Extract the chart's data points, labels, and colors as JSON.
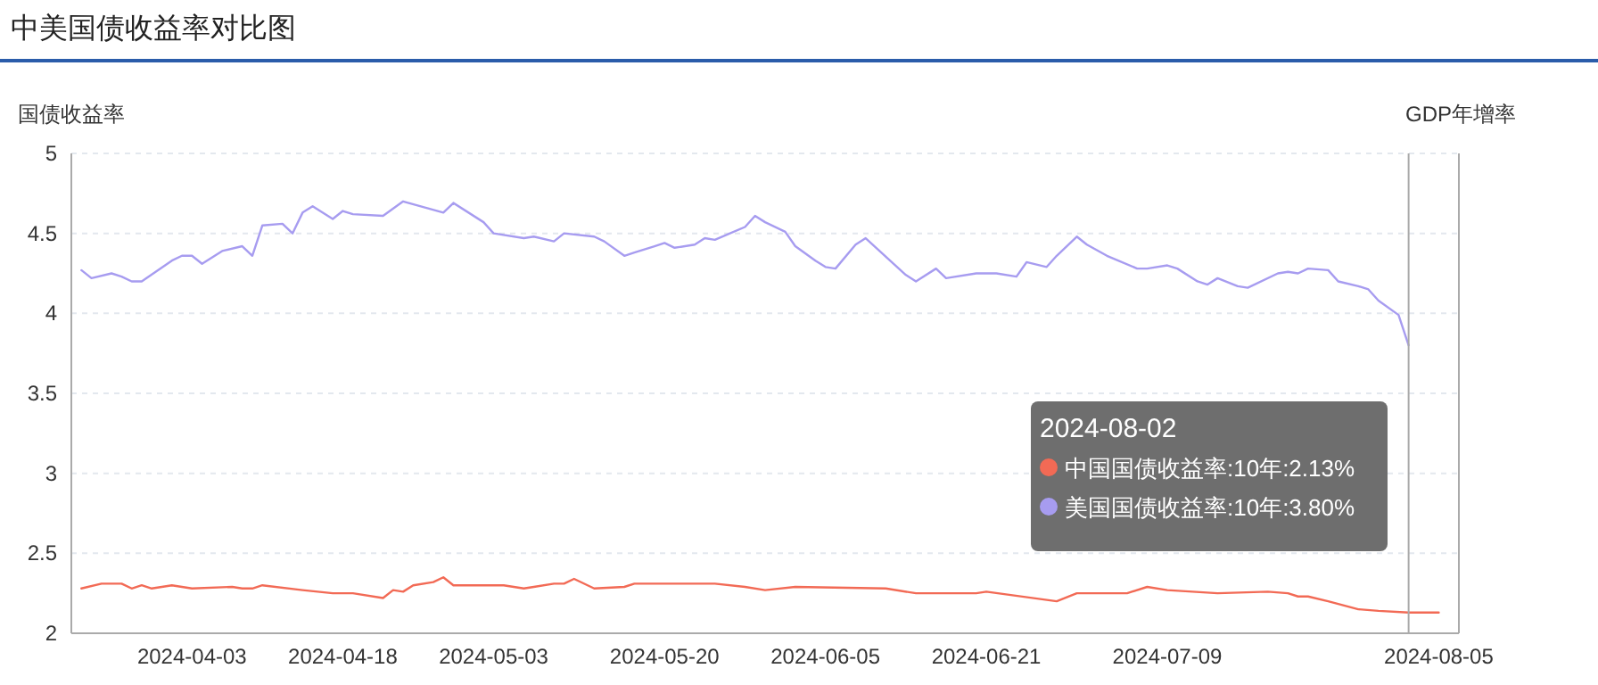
{
  "chart_data": {
    "type": "line",
    "title": "中美国债收益率对比图",
    "ylabel": "国债收益率",
    "y2label": "GDP年增率",
    "xlim": [
      "2024-03-22",
      "2024-08-07"
    ],
    "xticks": [
      "2024-04-03",
      "2024-04-18",
      "2024-05-03",
      "2024-05-20",
      "2024-06-05",
      "2024-06-21",
      "2024-07-09",
      "2024-08-05"
    ],
    "ylim": [
      2,
      5
    ],
    "yticks": [
      2,
      2.5,
      3,
      3.5,
      4,
      4.5,
      5
    ],
    "grid": "y",
    "marker": "none",
    "line_style": "solid",
    "ref_lines": [
      {
        "axis": "x",
        "value": "2024-08-02",
        "color": "#aaaaaa"
      }
    ],
    "annotations": [
      "2024-08-02",
      "中国国债收益率:10年:2.13%",
      "美国国债收益率:10年:3.80%"
    ],
    "series": [
      {
        "color": "#f26a55",
        "x": [
          "2024-03-23",
          "2024-03-25",
          "2024-03-27",
          "2024-03-28",
          "2024-03-29",
          "2024-03-30",
          "2024-04-01",
          "2024-04-03",
          "2024-04-07",
          "2024-04-08",
          "2024-04-09",
          "2024-04-10",
          "2024-04-14",
          "2024-04-17",
          "2024-04-19",
          "2024-04-22",
          "2024-04-23",
          "2024-04-24",
          "2024-04-25",
          "2024-04-27",
          "2024-04-28",
          "2024-04-29",
          "2024-05-04",
          "2024-05-06",
          "2024-05-07",
          "2024-05-09",
          "2024-05-10",
          "2024-05-11",
          "2024-05-13",
          "2024-05-16",
          "2024-05-17",
          "2024-05-25",
          "2024-05-28",
          "2024-05-30",
          "2024-06-02",
          "2024-06-11",
          "2024-06-14",
          "2024-06-20",
          "2024-06-21",
          "2024-06-28",
          "2024-06-30",
          "2024-07-05",
          "2024-07-07",
          "2024-07-09",
          "2024-07-14",
          "2024-07-19",
          "2024-07-21",
          "2024-07-22",
          "2024-07-23",
          "2024-07-25",
          "2024-07-28",
          "2024-07-30",
          "2024-08-02",
          "2024-08-05"
        ],
        "values": [
          2.28,
          2.31,
          2.31,
          2.28,
          2.3,
          2.28,
          2.3,
          2.28,
          2.29,
          2.28,
          2.28,
          2.3,
          2.27,
          2.25,
          2.25,
          2.22,
          2.27,
          2.26,
          2.3,
          2.32,
          2.35,
          2.3,
          2.3,
          2.28,
          2.29,
          2.31,
          2.31,
          2.34,
          2.28,
          2.29,
          2.31,
          2.31,
          2.29,
          2.27,
          2.29,
          2.28,
          2.25,
          2.25,
          2.26,
          2.2,
          2.25,
          2.25,
          2.29,
          2.27,
          2.25,
          2.26,
          2.25,
          2.23,
          2.23,
          2.2,
          2.15,
          2.14,
          2.13,
          2.13
        ]
      },
      {
        "color": "#a79cf0",
        "x": [
          "2024-03-23",
          "2024-03-24",
          "2024-03-26",
          "2024-03-27",
          "2024-03-28",
          "2024-03-29",
          "2024-04-01",
          "2024-04-02",
          "2024-04-03",
          "2024-04-04",
          "2024-04-06",
          "2024-04-08",
          "2024-04-09",
          "2024-04-10",
          "2024-04-12",
          "2024-04-13",
          "2024-04-14",
          "2024-04-15",
          "2024-04-17",
          "2024-04-18",
          "2024-04-19",
          "2024-04-22",
          "2024-04-24",
          "2024-04-28",
          "2024-04-29",
          "2024-05-02",
          "2024-05-03",
          "2024-05-06",
          "2024-05-07",
          "2024-05-09",
          "2024-05-10",
          "2024-05-13",
          "2024-05-14",
          "2024-05-16",
          "2024-05-17",
          "2024-05-19",
          "2024-05-20",
          "2024-05-21",
          "2024-05-23",
          "2024-05-24",
          "2024-05-25",
          "2024-05-28",
          "2024-05-29",
          "2024-05-30",
          "2024-06-01",
          "2024-06-02",
          "2024-06-04",
          "2024-06-05",
          "2024-06-06",
          "2024-06-08",
          "2024-06-09",
          "2024-06-13",
          "2024-06-14",
          "2024-06-16",
          "2024-06-17",
          "2024-06-20",
          "2024-06-22",
          "2024-06-24",
          "2024-06-25",
          "2024-06-27",
          "2024-06-28",
          "2024-06-30",
          "2024-07-01",
          "2024-07-03",
          "2024-07-06",
          "2024-07-07",
          "2024-07-09",
          "2024-07-10",
          "2024-07-12",
          "2024-07-13",
          "2024-07-14",
          "2024-07-16",
          "2024-07-17",
          "2024-07-20",
          "2024-07-21",
          "2024-07-22",
          "2024-07-23",
          "2024-07-25",
          "2024-07-26",
          "2024-07-28",
          "2024-07-29",
          "2024-07-30",
          "2024-08-01",
          "2024-08-02"
        ],
        "values": [
          4.27,
          4.22,
          4.25,
          4.23,
          4.2,
          4.2,
          4.33,
          4.36,
          4.36,
          4.31,
          4.39,
          4.42,
          4.36,
          4.55,
          4.56,
          4.5,
          4.63,
          4.67,
          4.59,
          4.64,
          4.62,
          4.61,
          4.7,
          4.63,
          4.69,
          4.57,
          4.5,
          4.47,
          4.48,
          4.45,
          4.5,
          4.48,
          4.45,
          4.36,
          4.38,
          4.42,
          4.44,
          4.41,
          4.43,
          4.47,
          4.46,
          4.54,
          4.61,
          4.57,
          4.51,
          4.42,
          4.33,
          4.29,
          4.28,
          4.43,
          4.47,
          4.24,
          4.2,
          4.28,
          4.22,
          4.25,
          4.25,
          4.23,
          4.32,
          4.29,
          4.36,
          4.48,
          4.43,
          4.36,
          4.28,
          4.28,
          4.3,
          4.28,
          4.2,
          4.18,
          4.22,
          4.17,
          4.16,
          4.25,
          4.26,
          4.25,
          4.28,
          4.27,
          4.2,
          4.17,
          4.15,
          4.08,
          3.99,
          3.8
        ]
      }
    ]
  }
}
